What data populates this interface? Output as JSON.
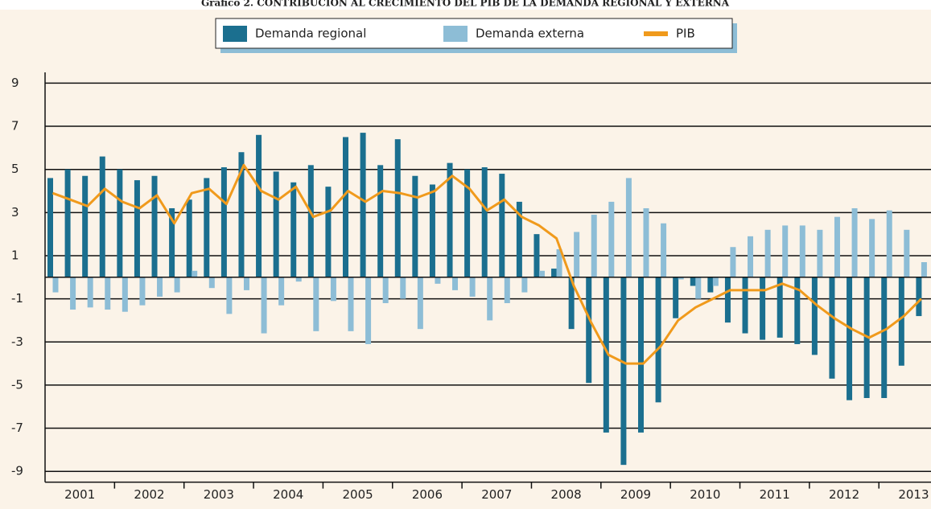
{
  "chart_data": {
    "type": "bar_line",
    "title": "Gráfico 2. CONTRIBUCIÓN AL CRECIMIENTO DEL PIB DE LA DEMANDA REGIONAL Y EXTERNA",
    "categories": [
      null,
      "2001",
      null,
      null,
      null,
      "2002",
      null,
      null,
      null,
      "2003",
      null,
      null,
      null,
      "2004",
      null,
      null,
      null,
      "2005",
      null,
      null,
      null,
      "2006",
      null,
      null,
      null,
      "2007",
      null,
      null,
      null,
      "2008",
      null,
      null,
      null,
      "2009",
      null,
      null,
      null,
      "2010",
      null,
      null,
      null,
      "2011",
      null,
      null,
      null,
      "2012",
      null,
      null,
      null,
      "2013",
      null
    ],
    "series": [
      {
        "name": "Demanda regional",
        "type": "bar",
        "color": "#1b6f8f",
        "values": [
          4.6,
          5.0,
          4.7,
          5.6,
          5.0,
          4.5,
          4.7,
          3.2,
          3.6,
          4.6,
          5.1,
          5.8,
          6.6,
          4.9,
          4.4,
          5.2,
          4.2,
          6.5,
          6.7,
          5.2,
          6.4,
          4.7,
          4.3,
          5.3,
          5.0,
          5.1,
          4.8,
          3.5,
          2.0,
          0.4,
          -2.4,
          -4.9,
          -7.2,
          -8.7,
          -7.2,
          -5.8,
          -1.9,
          -0.4,
          -0.7,
          -2.1,
          -2.6,
          -2.9,
          -2.8,
          -3.1,
          -3.6,
          -4.7,
          -5.7,
          -5.6,
          -5.6,
          -4.1,
          -1.8
        ]
      },
      {
        "name": "Demanda externa",
        "type": "bar",
        "color": "#8dbdd6",
        "values": [
          -0.7,
          -1.5,
          -1.4,
          -1.5,
          -1.6,
          -1.3,
          -0.9,
          -0.7,
          0.3,
          -0.5,
          -1.7,
          -0.6,
          -2.6,
          -1.3,
          -0.2,
          -2.5,
          -1.1,
          -2.5,
          -3.1,
          -1.2,
          -1.0,
          -2.4,
          -0.3,
          -0.6,
          -0.9,
          -2.0,
          -1.2,
          -0.7,
          0.3,
          1.3,
          2.1,
          2.9,
          3.5,
          4.6,
          3.2,
          2.5,
          -0.1,
          -1.0,
          -0.4,
          1.4,
          1.9,
          2.2,
          2.4,
          2.4,
          2.2,
          2.8,
          3.2,
          2.7,
          3.1,
          2.2,
          0.7
        ]
      },
      {
        "name": "PIB",
        "type": "line",
        "color": "#f09a1c",
        "values": [
          3.9,
          3.6,
          3.3,
          4.1,
          3.5,
          3.2,
          3.8,
          2.5,
          3.9,
          4.1,
          3.4,
          5.2,
          4.0,
          3.6,
          4.2,
          2.8,
          3.1,
          4.0,
          3.5,
          4.0,
          3.9,
          3.7,
          4.0,
          4.7,
          4.1,
          3.1,
          3.6,
          2.8,
          2.4,
          1.8,
          -0.4,
          -2.1,
          -3.6,
          -4.0,
          -4.0,
          -3.2,
          -2.0,
          -1.4,
          -1.0,
          -0.6,
          -0.6,
          -0.6,
          -0.3,
          -0.6,
          -1.3,
          -1.9,
          -2.4,
          -2.8,
          -2.4,
          -1.8,
          -1.0
        ]
      }
    ],
    "ylim": [
      -9.5,
      9.5
    ],
    "yticks": [
      9,
      7,
      5,
      3,
      1,
      -1,
      -3,
      -5,
      -7,
      -9
    ],
    "grid": true
  }
}
